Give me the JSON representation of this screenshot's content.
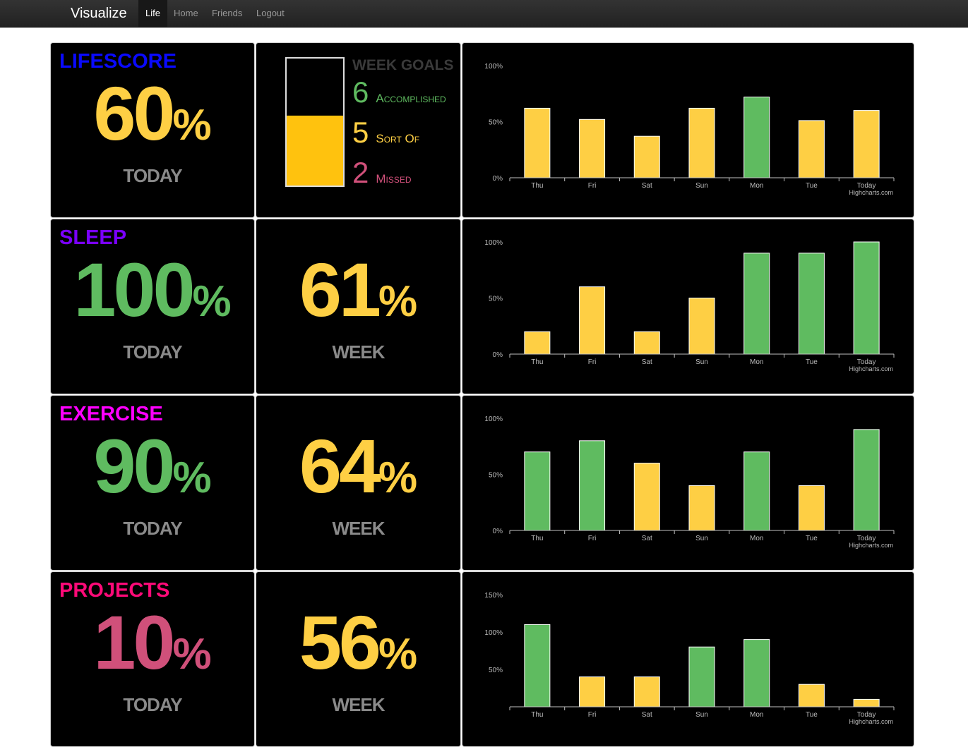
{
  "nav": {
    "brand": "Visualize",
    "links": [
      "Life",
      "Home",
      "Friends",
      "Logout"
    ],
    "active": 0
  },
  "rows": [
    {
      "title": "LIFESCORE",
      "title_color": "#0a0aff",
      "today": {
        "value": 60,
        "unit": "%",
        "label": "TODAY",
        "color": "#fecf44"
      },
      "week_goals": {
        "title": "WEEK GOALS",
        "fill": 55,
        "fill_color": "#ffc20e",
        "items": [
          {
            "count": 6,
            "label": "Accomplished",
            "color": "#5fbb60"
          },
          {
            "count": 5,
            "label": "Sort Of",
            "color": "#fecf44"
          },
          {
            "count": 2,
            "label": "Missed",
            "color": "#d0507a"
          }
        ]
      },
      "chart_data": {
        "type": "bar",
        "categories": [
          "Thu",
          "Fri",
          "Sat",
          "Sun",
          "Mon",
          "Tue",
          "Today"
        ],
        "values": [
          62,
          52,
          37,
          62,
          72,
          51,
          60
        ],
        "colors": [
          "#fecf44",
          "#fecf44",
          "#fecf44",
          "#fecf44",
          "#5fbb60",
          "#fecf44",
          "#fecf44"
        ],
        "ylim": [
          0,
          100
        ],
        "yticks": [
          {
            "value": 0,
            "label": "0%"
          },
          {
            "value": 50,
            "label": "50%"
          },
          {
            "value": 100,
            "label": "100%"
          }
        ],
        "credit": "Highcharts.com"
      }
    },
    {
      "title": "SLEEP",
      "title_color": "#7a00ff",
      "today": {
        "value": 100,
        "unit": "%",
        "label": "TODAY",
        "color": "#5fbb60"
      },
      "week": {
        "value": 61,
        "unit": "%",
        "label": "WEEK",
        "color": "#fecf44"
      },
      "chart_data": {
        "type": "bar",
        "categories": [
          "Thu",
          "Fri",
          "Sat",
          "Sun",
          "Mon",
          "Tue",
          "Today"
        ],
        "values": [
          20,
          60,
          20,
          50,
          90,
          90,
          100
        ],
        "colors": [
          "#fecf44",
          "#fecf44",
          "#fecf44",
          "#fecf44",
          "#5fbb60",
          "#5fbb60",
          "#5fbb60"
        ],
        "ylim": [
          0,
          100
        ],
        "yticks": [
          {
            "value": 0,
            "label": "0%"
          },
          {
            "value": 50,
            "label": "50%"
          },
          {
            "value": 100,
            "label": "100%"
          }
        ],
        "credit": "Highcharts.com"
      }
    },
    {
      "title": "EXERCISE",
      "title_color": "#ff00ff",
      "today": {
        "value": 90,
        "unit": "%",
        "label": "TODAY",
        "color": "#5fbb60"
      },
      "week": {
        "value": 64,
        "unit": "%",
        "label": "WEEK",
        "color": "#fecf44"
      },
      "chart_data": {
        "type": "bar",
        "categories": [
          "Thu",
          "Fri",
          "Sat",
          "Sun",
          "Mon",
          "Tue",
          "Today"
        ],
        "values": [
          70,
          80,
          60,
          40,
          70,
          40,
          90
        ],
        "colors": [
          "#5fbb60",
          "#5fbb60",
          "#fecf44",
          "#fecf44",
          "#5fbb60",
          "#fecf44",
          "#5fbb60"
        ],
        "ylim": [
          0,
          100
        ],
        "yticks": [
          {
            "value": 0,
            "label": "0%"
          },
          {
            "value": 50,
            "label": "50%"
          },
          {
            "value": 100,
            "label": "100%"
          }
        ],
        "credit": "Highcharts.com"
      }
    },
    {
      "title": "PROJECTS",
      "title_color": "#ff0a78",
      "today": {
        "value": 10,
        "unit": "%",
        "label": "TODAY",
        "color": "#d0507a"
      },
      "week": {
        "value": 56,
        "unit": "%",
        "label": "WEEK",
        "color": "#fecf44"
      },
      "chart_data": {
        "type": "bar",
        "categories": [
          "Thu",
          "Fri",
          "Sat",
          "Sun",
          "Mon",
          "Tue",
          "Today"
        ],
        "values": [
          110,
          40,
          40,
          80,
          90,
          30,
          10
        ],
        "colors": [
          "#5fbb60",
          "#fecf44",
          "#fecf44",
          "#5fbb60",
          "#5fbb60",
          "#fecf44",
          "#fecf44"
        ],
        "ylim": [
          0,
          150
        ],
        "yticks": [
          {
            "value": 50,
            "label": "50%"
          },
          {
            "value": 100,
            "label": "100%"
          },
          {
            "value": 150,
            "label": "150%"
          }
        ],
        "credit": "Highcharts.com"
      }
    }
  ]
}
